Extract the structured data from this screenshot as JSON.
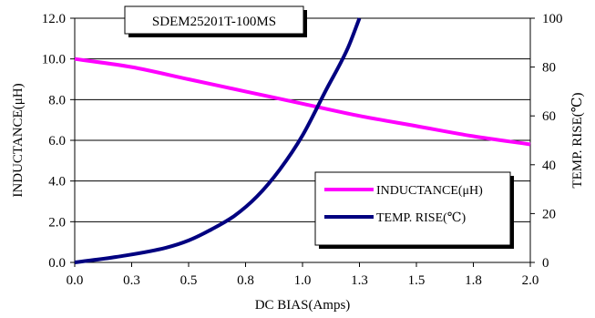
{
  "chart_data": {
    "type": "line",
    "title": "SDEM25201T-100MS",
    "xlabel": "DC BIAS(Amps)",
    "ylabel": "INDUCTANCE(μH)",
    "y2label": "TEMP. RISE(℃)",
    "xlim": [
      0.0,
      2.0
    ],
    "ylim": [
      0.0,
      12.0
    ],
    "y2lim": [
      0,
      100
    ],
    "x_ticks": [
      "0.0",
      "0.3",
      "0.5",
      "0.8",
      "1.0",
      "1.3",
      "1.5",
      "1.8",
      "2.0"
    ],
    "x_tick_values": [
      0.0,
      0.25,
      0.5,
      0.75,
      1.0,
      1.25,
      1.5,
      1.75,
      2.0
    ],
    "y_ticks": [
      "0.0",
      "2.0",
      "4.0",
      "6.0",
      "8.0",
      "10.0",
      "12.0"
    ],
    "y_tick_values": [
      0,
      2,
      4,
      6,
      8,
      10,
      12
    ],
    "y2_ticks": [
      "0",
      "20",
      "40",
      "60",
      "80",
      "100"
    ],
    "y2_tick_values": [
      0,
      20,
      40,
      60,
      80,
      100
    ],
    "legend_position": "bottom-right",
    "grid": "horizontal",
    "series": [
      {
        "name": "INDUCTANCE(μH)",
        "axis": "left",
        "color": "#ff00ff",
        "x": [
          0.0,
          0.25,
          0.5,
          0.75,
          1.0,
          1.25,
          1.5,
          1.75,
          2.0
        ],
        "y": [
          10.0,
          9.6,
          9.0,
          8.4,
          7.8,
          7.2,
          6.7,
          6.2,
          5.8
        ]
      },
      {
        "name": "TEMP. RISE(℃)",
        "axis": "right",
        "color": "#000080",
        "x": [
          0.0,
          0.2,
          0.4,
          0.5,
          0.6,
          0.7,
          0.8,
          0.9,
          1.0,
          1.1,
          1.2,
          1.25
        ],
        "y": [
          0,
          2.5,
          6,
          9,
          13.5,
          19,
          27,
          38,
          52,
          70,
          88,
          100
        ]
      }
    ]
  }
}
